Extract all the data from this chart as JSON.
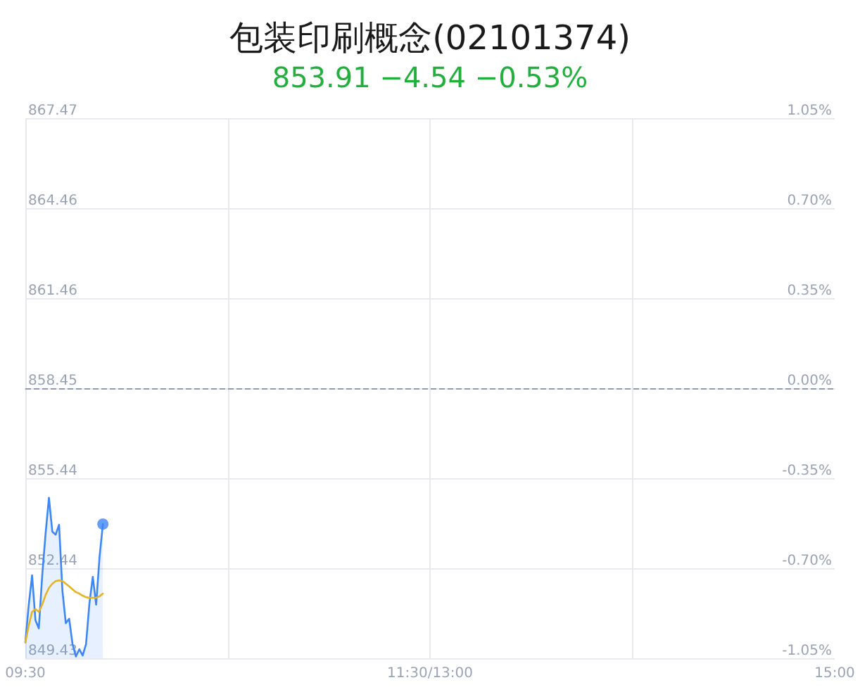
{
  "chart_data": {
    "type": "line",
    "title": "包装印刷概念(02101374)",
    "subtitle": "853.91 −4.54 −0.53%",
    "categories": [
      "09:30",
      null,
      null,
      null,
      null,
      null,
      null,
      null,
      null,
      null,
      null,
      null,
      null,
      null,
      null,
      null,
      null,
      null,
      null,
      null,
      null,
      null,
      null,
      null,
      null,
      null,
      null,
      null,
      null,
      null,
      null,
      null,
      null,
      null,
      null,
      null,
      null,
      null,
      null,
      null,
      null,
      null,
      null,
      null,
      null,
      null,
      null,
      null,
      null,
      null,
      null,
      null,
      null,
      null,
      null,
      null,
      null,
      null,
      null,
      null,
      null,
      null,
      null,
      null,
      null,
      null,
      null,
      null,
      null,
      null,
      null,
      null,
      null,
      null,
      null,
      null,
      null,
      null,
      null,
      null,
      null,
      null,
      null,
      null,
      null,
      null,
      null,
      null,
      null,
      null,
      null,
      null,
      null,
      null,
      null,
      null,
      null,
      null,
      null,
      null,
      null,
      null,
      null,
      null,
      null,
      null,
      null,
      null,
      null,
      null,
      null,
      null,
      null,
      null,
      null,
      null,
      null,
      null,
      null,
      null,
      "11:30/13:00",
      null,
      null,
      null,
      null,
      null,
      null,
      null,
      null,
      null,
      null,
      null,
      null,
      null,
      null,
      null,
      null,
      null,
      null,
      null,
      null,
      null,
      null,
      null,
      null,
      null,
      null,
      null,
      null,
      null,
      null,
      null,
      null,
      null,
      null,
      null,
      null,
      null,
      null,
      null,
      null,
      null,
      null,
      null,
      null,
      null,
      null,
      null,
      null,
      null,
      null,
      null,
      null,
      null,
      null,
      null,
      null,
      null,
      null,
      null,
      null,
      null,
      null,
      null,
      null,
      null,
      null,
      null,
      null,
      null,
      null,
      null,
      null,
      null,
      null,
      null,
      null,
      null,
      null,
      null,
      null,
      null,
      null,
      null,
      null,
      null,
      null,
      null,
      null,
      null,
      null,
      null,
      null,
      null,
      null,
      null,
      null,
      null,
      null,
      null,
      null,
      null,
      null,
      null,
      null,
      null,
      null,
      null,
      null,
      null,
      null,
      null,
      null,
      null,
      null,
      null,
      null,
      null,
      null,
      null,
      "15:00"
    ],
    "ylim": [
      849.43,
      867.47
    ],
    "yticks": [
      849.43,
      852.44,
      855.44,
      858.45,
      861.46,
      864.46,
      867.47
    ],
    "y2lim": [
      -1.05,
      1.05
    ],
    "y2ticks": [
      {
        "value": -1.05,
        "label": "-1.05%"
      },
      {
        "value": -0.7,
        "label": "-0.70%"
      },
      {
        "value": -0.35,
        "label": "-0.35%"
      },
      {
        "value": 0,
        "label": "0.00%"
      },
      {
        "value": 0.35,
        "label": "0.35%"
      },
      {
        "value": 0.7,
        "label": "0.70%"
      },
      {
        "value": 1.05,
        "label": "1.05%"
      }
    ],
    "series": [
      {
        "type": "area",
        "color": "#3d86f5",
        "values": [
          849.96,
          851.2,
          852.2,
          850.7,
          850.43,
          852.19,
          853.59,
          854.79,
          853.66,
          853.56,
          853.89,
          851.68,
          850.6,
          850.75,
          849.9,
          849.49,
          849.73,
          849.52,
          849.9,
          851.26,
          852.15,
          851.22,
          852.81,
          853.91,
          null,
          null,
          null,
          null,
          null,
          null,
          null,
          null,
          null,
          null,
          null,
          null,
          null,
          null,
          null,
          null,
          null,
          null,
          null,
          null,
          null,
          null,
          null,
          null,
          null,
          null,
          null,
          null,
          null,
          null,
          null,
          null,
          null,
          null,
          null,
          null,
          null,
          null,
          null,
          null,
          null,
          null,
          null,
          null,
          null,
          null,
          null,
          null,
          null,
          null,
          null,
          null,
          null,
          null,
          null,
          null,
          null,
          null,
          null,
          null,
          null,
          null,
          null,
          null,
          null,
          null,
          null,
          null,
          null,
          null,
          null,
          null,
          null,
          null,
          null,
          null,
          null,
          null,
          null,
          null,
          null,
          null,
          null,
          null,
          null,
          null,
          null,
          null,
          null,
          null,
          null,
          null,
          null,
          null,
          null,
          null,
          null,
          null,
          null,
          null,
          null,
          null,
          null,
          null,
          null,
          null,
          null,
          null,
          null,
          null,
          null,
          null,
          null,
          null,
          null,
          null,
          null,
          null,
          null,
          null,
          null,
          null,
          null,
          null,
          null,
          null,
          null,
          null,
          null,
          null,
          null,
          null,
          null,
          null,
          null,
          null,
          null,
          null,
          null,
          null,
          null,
          null,
          null,
          null,
          null,
          null,
          null,
          null,
          null,
          null,
          null,
          null,
          null,
          null,
          null,
          null,
          null,
          null,
          null,
          null,
          null,
          null,
          null,
          null,
          null,
          null,
          null,
          null,
          null,
          null,
          null,
          null,
          null,
          null,
          null,
          null,
          null,
          null,
          null,
          null,
          null,
          null,
          null,
          null,
          null,
          null,
          null,
          null,
          null,
          null,
          null,
          null,
          null,
          null,
          null,
          null,
          null,
          null,
          null,
          null,
          null,
          null,
          null,
          null,
          null,
          null,
          null,
          null,
          null,
          null,
          null,
          null,
          null,
          null,
          null,
          null,
          null
        ]
      },
      {
        "type": "line",
        "color": "#e6b422",
        "values": [
          849.96,
          850.51,
          850.98,
          851.07,
          850.98,
          851.22,
          851.54,
          851.78,
          851.92,
          852.01,
          852.03,
          852.01,
          851.92,
          851.83,
          851.73,
          851.64,
          851.59,
          851.52,
          851.47,
          851.45,
          851.45,
          851.45,
          851.5,
          851.59,
          null,
          null,
          null,
          null,
          null,
          null,
          null,
          null,
          null,
          null,
          null,
          null,
          null,
          null,
          null,
          null,
          null,
          null,
          null,
          null,
          null,
          null,
          null,
          null,
          null,
          null,
          null,
          null,
          null,
          null,
          null,
          null,
          null,
          null,
          null,
          null,
          null,
          null,
          null,
          null,
          null,
          null,
          null,
          null,
          null,
          null,
          null,
          null,
          null,
          null,
          null,
          null,
          null,
          null,
          null,
          null,
          null,
          null,
          null,
          null,
          null,
          null,
          null,
          null,
          null,
          null,
          null,
          null,
          null,
          null,
          null,
          null,
          null,
          null,
          null,
          null,
          null,
          null,
          null,
          null,
          null,
          null,
          null,
          null,
          null,
          null,
          null,
          null,
          null,
          null,
          null,
          null,
          null,
          null,
          null,
          null,
          null,
          null,
          null,
          null,
          null,
          null,
          null,
          null,
          null,
          null,
          null,
          null,
          null,
          null,
          null,
          null,
          null,
          null,
          null,
          null,
          null,
          null,
          null,
          null,
          null,
          null,
          null,
          null,
          null,
          null,
          null,
          null,
          null,
          null,
          null,
          null,
          null,
          null,
          null,
          null,
          null,
          null,
          null,
          null,
          null,
          null,
          null,
          null,
          null,
          null,
          null,
          null,
          null,
          null,
          null,
          null,
          null,
          null,
          null,
          null,
          null,
          null,
          null,
          null,
          null,
          null,
          null,
          null,
          null,
          null,
          null,
          null,
          null,
          null,
          null,
          null,
          null,
          null,
          null,
          null,
          null,
          null,
          null,
          null,
          null,
          null,
          null,
          null,
          null,
          null,
          null,
          null,
          null,
          null,
          null,
          null,
          null,
          null,
          null,
          null,
          null,
          null,
          null,
          null,
          null,
          null,
          null,
          null,
          null,
          null,
          null,
          null,
          null,
          null,
          null,
          null,
          null,
          null,
          null,
          null,
          null
        ]
      },
      {
        "type": "scatter",
        "color": "#3d86f5",
        "marker": "circle",
        "values": [
          null,
          null,
          null,
          null,
          null,
          null,
          null,
          null,
          null,
          null,
          null,
          null,
          null,
          null,
          null,
          null,
          null,
          null,
          null,
          null,
          null,
          null,
          null,
          853.91,
          null,
          null,
          null,
          null,
          null,
          null,
          null,
          null,
          null,
          null,
          null,
          null,
          null,
          null,
          null,
          null,
          null,
          null,
          null,
          null,
          null,
          null,
          null,
          null,
          null,
          null,
          null,
          null,
          null,
          null,
          null,
          null,
          null,
          null,
          null,
          null,
          null,
          null,
          null,
          null,
          null,
          null,
          null,
          null,
          null,
          null,
          null,
          null,
          null,
          null,
          null,
          null,
          null,
          null,
          null,
          null,
          null,
          null,
          null,
          null,
          null,
          null,
          null,
          null,
          null,
          null,
          null,
          null,
          null,
          null,
          null,
          null,
          null,
          null,
          null,
          null,
          null,
          null,
          null,
          null,
          null,
          null,
          null,
          null,
          null,
          null,
          null,
          null,
          null,
          null,
          null,
          null,
          null,
          null,
          null,
          null,
          null,
          null,
          null,
          null,
          null,
          null,
          null,
          null,
          null,
          null,
          null,
          null,
          null,
          null,
          null,
          null,
          null,
          null,
          null,
          null,
          null,
          null,
          null,
          null,
          null,
          null,
          null,
          null,
          null,
          null,
          null,
          null,
          null,
          null,
          null,
          null,
          null,
          null,
          null,
          null,
          null,
          null,
          null,
          null,
          null,
          null,
          null,
          null,
          null,
          null,
          null,
          null,
          null,
          null,
          null,
          null,
          null,
          null,
          null,
          null,
          null,
          null,
          null,
          null,
          null,
          null,
          null,
          null,
          null,
          null,
          null,
          null,
          null,
          null,
          null,
          null,
          null,
          null,
          null,
          null,
          null,
          null,
          null,
          null,
          null,
          null,
          null,
          null,
          null,
          null,
          null,
          null,
          null,
          null,
          null,
          null,
          null,
          null,
          null,
          null,
          null,
          null,
          null,
          null,
          null,
          null,
          null,
          null,
          null,
          null,
          null,
          null,
          null,
          null,
          null,
          null,
          null,
          null,
          null,
          null,
          null
        ]
      }
    ],
    "ref_lines": [
      {
        "axis": "y",
        "value": 858.45,
        "color": "#8f9bb3",
        "line_style": "dashed"
      }
    ],
    "grid": true,
    "marker": "none"
  }
}
